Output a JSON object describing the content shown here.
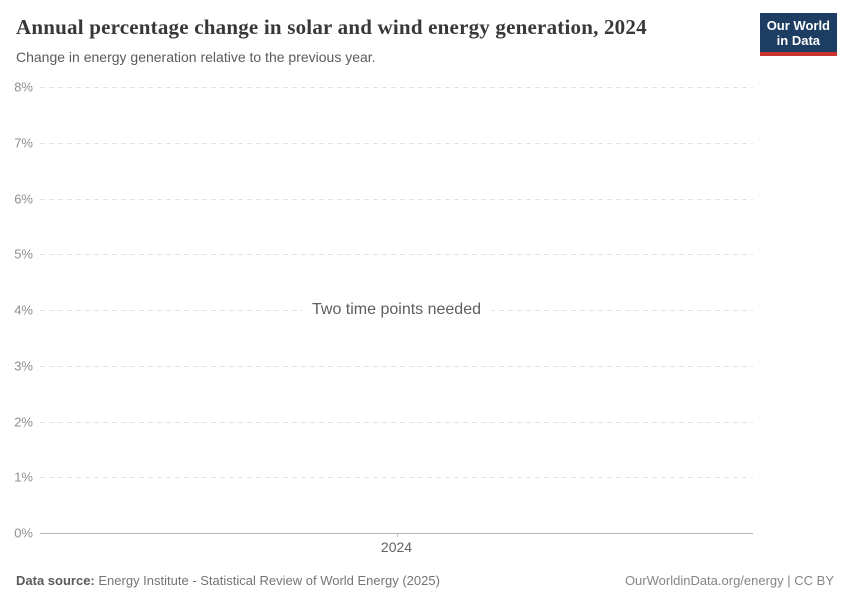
{
  "header": {
    "title": "Annual percentage change in solar and wind energy generation, 2024",
    "subtitle": "Change in energy generation relative to the previous year.",
    "logo": {
      "line1": "Our World",
      "line2": "in Data"
    }
  },
  "chart_data": {
    "type": "line",
    "title": "Annual percentage change in solar and wind energy generation, 2024",
    "subtitle": "Change in energy generation relative to the previous year.",
    "series": [],
    "x": [],
    "empty_message": "Two time points needed",
    "x_tick_labels": [
      "2024"
    ],
    "y_ticks": [
      0,
      1,
      2,
      3,
      4,
      5,
      6,
      7,
      8
    ],
    "y_tick_labels": [
      "0%",
      "1%",
      "2%",
      "3%",
      "4%",
      "5%",
      "6%",
      "7%",
      "8%"
    ],
    "ylim": [
      0,
      8
    ],
    "xlabel": "",
    "ylabel": "",
    "grid": "horizontal-dashed",
    "legend": "none"
  },
  "footer": {
    "source_label": "Data source:",
    "source_text": "Energy Institute - Statistical Review of World Energy (2025)",
    "right_text": "OurWorldinData.org/energy | CC BY"
  },
  "colors": {
    "logo_bg": "#1d3d63",
    "logo_bar": "#c9352e",
    "gridline": "#e3e3e3",
    "axis_line": "#b3b3b3",
    "title_text": "#383838",
    "muted_text": "#5b5b5b",
    "tick_text": "#8f8f8f"
  }
}
